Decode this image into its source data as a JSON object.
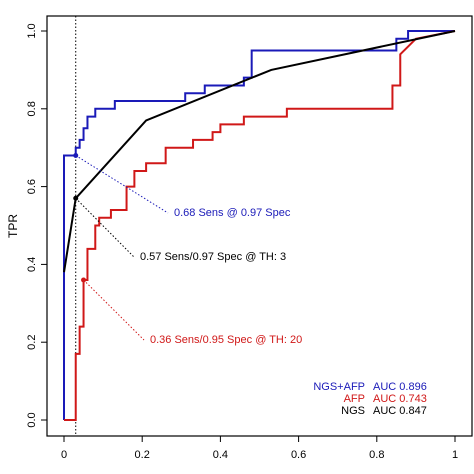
{
  "chart_data": {
    "type": "line",
    "ylabel": "TPR",
    "xlim": [
      0,
      1
    ],
    "ylim": [
      0,
      1
    ],
    "xticks": [
      0,
      0.2,
      0.4,
      0.6,
      0.8,
      1
    ],
    "yticks": [
      {
        "value": 0,
        "label": "0.0"
      },
      {
        "value": 0.2,
        "label": "0.2"
      },
      {
        "value": 0.4,
        "label": "0.4"
      },
      {
        "value": 0.6,
        "label": "0.6"
      },
      {
        "value": 0.8,
        "label": "0.8"
      },
      {
        "value": 1,
        "label": "1.0"
      }
    ],
    "vline": 0.03,
    "series": [
      {
        "name": "NGS+AFP",
        "auc": "AUC 0.896",
        "color": "#1a1ab8",
        "step": true,
        "x": [
          0,
          0,
          0.03,
          0.03,
          0.04,
          0.04,
          0.05,
          0.05,
          0.06,
          0.06,
          0.08,
          0.08,
          0.13,
          0.13,
          0.31,
          0.31,
          0.36,
          0.36,
          0.46,
          0.46,
          0.48,
          0.48,
          0.85,
          0.85,
          0.88,
          0.88,
          1
        ],
        "values": [
          0,
          0.68,
          0.68,
          0.7,
          0.7,
          0.72,
          0.72,
          0.75,
          0.75,
          0.78,
          0.78,
          0.8,
          0.8,
          0.82,
          0.82,
          0.84,
          0.84,
          0.86,
          0.86,
          0.88,
          0.88,
          0.95,
          0.95,
          0.98,
          0.98,
          1,
          1
        ]
      },
      {
        "name": "AFP",
        "auc": "AUC 0.743",
        "color": "#d01818",
        "step": true,
        "x": [
          0,
          0.03,
          0.03,
          0.04,
          0.04,
          0.05,
          0.05,
          0.06,
          0.06,
          0.08,
          0.08,
          0.09,
          0.09,
          0.12,
          0.12,
          0.16,
          0.16,
          0.18,
          0.18,
          0.21,
          0.21,
          0.26,
          0.26,
          0.33,
          0.33,
          0.38,
          0.38,
          0.4,
          0.4,
          0.46,
          0.46,
          0.57,
          0.57,
          0.84,
          0.84,
          0.86,
          0.86,
          0.88,
          0.9,
          1
        ],
        "values": [
          0,
          0,
          0.17,
          0.17,
          0.24,
          0.24,
          0.36,
          0.36,
          0.44,
          0.44,
          0.5,
          0.5,
          0.52,
          0.52,
          0.54,
          0.54,
          0.6,
          0.6,
          0.64,
          0.64,
          0.66,
          0.66,
          0.7,
          0.7,
          0.72,
          0.72,
          0.74,
          0.74,
          0.76,
          0.76,
          0.78,
          0.78,
          0.8,
          0.8,
          0.86,
          0.86,
          0.94,
          0.96,
          0.98,
          1
        ]
      },
      {
        "name": "NGS",
        "auc": "AUC 0.847",
        "color": "#000000",
        "step": false,
        "x": [
          0,
          0.03,
          0.21,
          0.53,
          1
        ],
        "values": [
          0.38,
          0.57,
          0.77,
          0.9,
          1
        ]
      }
    ],
    "annotations": [
      {
        "text": "0.68 Sens @ 0.97 Spec",
        "x": 0.03,
        "y": 0.68,
        "color": "#1a1ab8"
      },
      {
        "text": "0.57 Sens/0.97 Spec @ TH: 3",
        "x": 0.03,
        "y": 0.57,
        "color": "#000000"
      },
      {
        "text": "0.36 Sens/0.95 Spec @ TH: 20",
        "x": 0.05,
        "y": 0.36,
        "color": "#d01818"
      }
    ]
  }
}
